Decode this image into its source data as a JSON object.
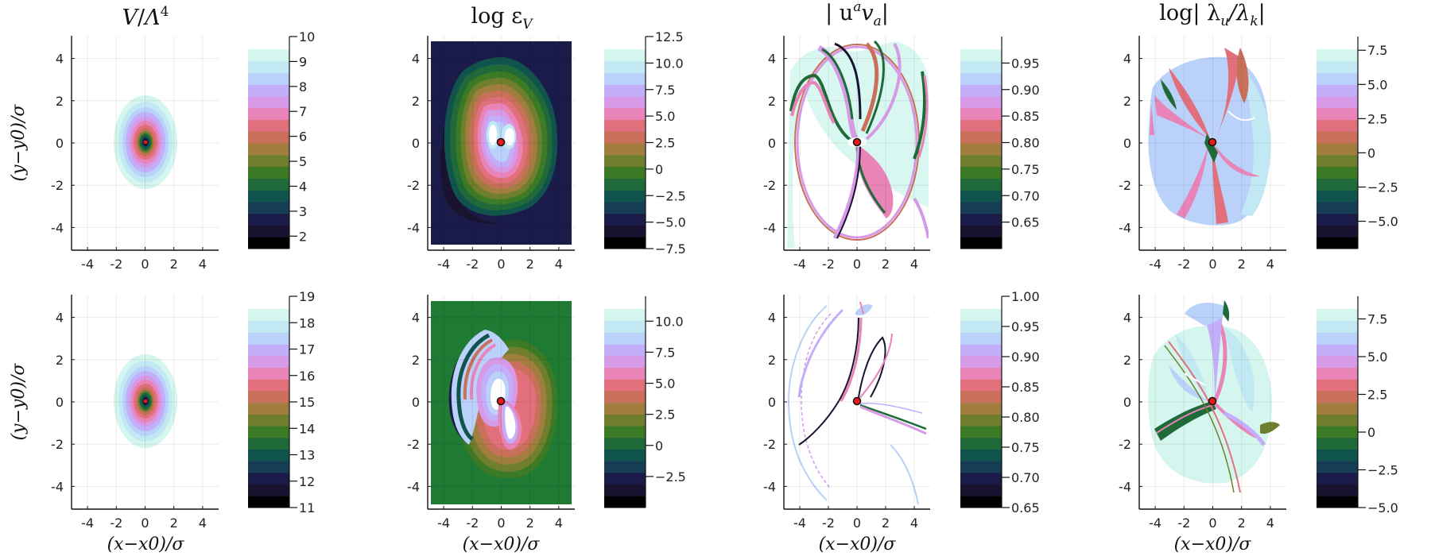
{
  "colormap": [
    "#000000",
    "#1a1330",
    "#1b1b4a",
    "#173d55",
    "#10544d",
    "#206a3a",
    "#3d7a26",
    "#6f7f2d",
    "#a27d40",
    "#c8705a",
    "#e2707c",
    "#e884b8",
    "#d69ae6",
    "#c3aefa",
    "#bad1fa",
    "#c2e9f3",
    "#d4f6ee"
  ],
  "marker_color": "#e8191a",
  "chart_data": [
    {
      "type": "heatmap",
      "title_main": "V",
      "title_denom": "Λ",
      "title_exp": "4",
      "xlabel": "",
      "ylabel": "(y−y0)/σ",
      "xticks": [
        "-4",
        "-2",
        "0",
        "2",
        "4"
      ],
      "yticks": [
        "4",
        "2",
        "0",
        "-2",
        "-4"
      ],
      "xlim": [
        -5,
        5
      ],
      "ylim": [
        -5,
        5
      ],
      "colorbar": {
        "range": [
          1.5,
          10
        ],
        "ticks": [
          "10",
          "9",
          "8",
          "7",
          "6",
          "5",
          "4",
          "3",
          "2"
        ]
      },
      "grid": true
    },
    {
      "type": "heatmap",
      "title_main": "log ε",
      "title_sub": "V",
      "xlabel": "",
      "ylabel": "",
      "xticks": [
        "-4",
        "-2",
        "0",
        "2",
        "4"
      ],
      "yticks": [
        "4",
        "2",
        "0",
        "-2",
        "-4"
      ],
      "xlim": [
        -5,
        5
      ],
      "ylim": [
        -5,
        5
      ],
      "colorbar": {
        "range": [
          -7.5,
          12.5
        ],
        "ticks": [
          "12.5",
          "10.0",
          "7.5",
          "5.0",
          "2.5",
          "0",
          "−2.5",
          "−5.0",
          "−7.5"
        ]
      },
      "grid": true
    },
    {
      "type": "heatmap",
      "title_main": "| u",
      "title_sup": "a",
      "title_rest": "v",
      "title_sub": "a",
      "title_end": "|",
      "xlabel": "",
      "ylabel": "",
      "xticks": [
        "-4",
        "-2",
        "0",
        "2",
        "4"
      ],
      "yticks": [
        "4",
        "2",
        "0",
        "-2",
        "-4"
      ],
      "xlim": [
        -5,
        5
      ],
      "ylim": [
        -5,
        5
      ],
      "colorbar": {
        "range": [
          0.6,
          1.0
        ],
        "ticks": [
          "0.95",
          "0.90",
          "0.85",
          "0.80",
          "0.75",
          "0.70",
          "0.65"
        ]
      },
      "grid": true
    },
    {
      "type": "heatmap",
      "title_main": "log| λ",
      "title_sub": "u",
      "title_rest": "/λ",
      "title_sub2": "k",
      "title_end": "|",
      "xlabel": "",
      "ylabel": "",
      "xticks": [
        "-4",
        "-2",
        "0",
        "2",
        "4"
      ],
      "yticks": [
        "4",
        "2",
        "0",
        "-2",
        "-4"
      ],
      "xlim": [
        -5,
        5
      ],
      "ylim": [
        -5,
        5
      ],
      "colorbar": {
        "range": [
          -7,
          8.5
        ],
        "ticks": [
          "7.5",
          "5.0",
          "2.5",
          "0",
          "−2.5",
          "−5.0"
        ]
      },
      "grid": true
    },
    {
      "type": "heatmap",
      "xlabel": "(x−x0)/σ",
      "ylabel": "(y−y0)/σ",
      "xticks": [
        "-4",
        "-2",
        "0",
        "2",
        "4"
      ],
      "yticks": [
        "4",
        "2",
        "0",
        "-2",
        "-4"
      ],
      "xlim": [
        -5,
        5
      ],
      "ylim": [
        -5,
        5
      ],
      "colorbar": {
        "range": [
          11,
          19
        ],
        "ticks": [
          "19",
          "18",
          "17",
          "16",
          "15",
          "14",
          "13",
          "12",
          "11"
        ]
      },
      "grid": true
    },
    {
      "type": "heatmap",
      "xlabel": "(x−x0)/σ",
      "ylabel": "",
      "xticks": [
        "-4",
        "-2",
        "0",
        "2",
        "4"
      ],
      "yticks": [
        "4",
        "2",
        "0",
        "-2",
        "-4"
      ],
      "xlim": [
        -5,
        5
      ],
      "ylim": [
        -5,
        5
      ],
      "colorbar": {
        "range": [
          -5,
          12
        ],
        "ticks": [
          "10.0",
          "7.5",
          "5.0",
          "2.5",
          "0",
          "−2.5"
        ]
      },
      "grid": true
    },
    {
      "type": "heatmap",
      "xlabel": "(x−x0)/σ",
      "ylabel": "",
      "xticks": [
        "-4",
        "-2",
        "0",
        "2",
        "4"
      ],
      "yticks": [
        "4",
        "2",
        "0",
        "-2",
        "-4"
      ],
      "xlim": [
        -5,
        5
      ],
      "ylim": [
        -5,
        5
      ],
      "colorbar": {
        "range": [
          0.65,
          1.0
        ],
        "ticks": [
          "1.00",
          "0.95",
          "0.90",
          "0.85",
          "0.80",
          "0.75",
          "0.70",
          "0.65"
        ]
      },
      "grid": true
    },
    {
      "type": "heatmap",
      "xlabel": "(x−x0)/σ",
      "ylabel": "",
      "xticks": [
        "-4",
        "-2",
        "0",
        "2",
        "4"
      ],
      "yticks": [
        "4",
        "2",
        "0",
        "-2",
        "-4"
      ],
      "xlim": [
        -5,
        5
      ],
      "ylim": [
        -5,
        5
      ],
      "colorbar": {
        "range": [
          -5,
          9
        ],
        "ticks": [
          "7.5",
          "5.0",
          "2.5",
          "0",
          "−2.5",
          "−5.0"
        ]
      },
      "grid": true
    }
  ]
}
